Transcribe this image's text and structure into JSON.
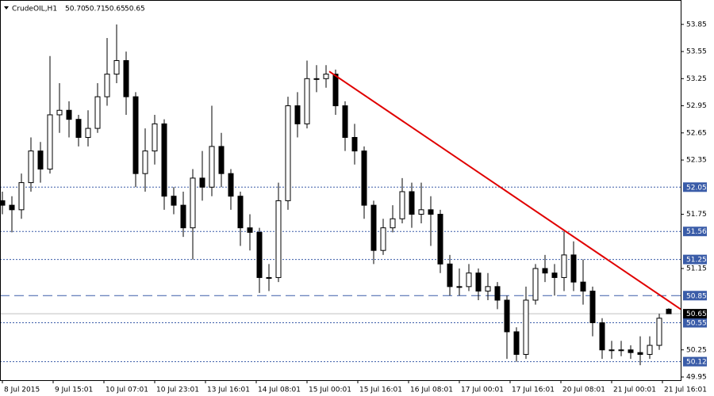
{
  "chart_data": {
    "type": "candlestick",
    "title": "CrudeOIL,H1",
    "header_ohlc": [
      "50.70",
      "50.71",
      "50.65",
      "50.65"
    ],
    "x": [
      0,
      3,
      6,
      9,
      12,
      15,
      18,
      21,
      24,
      27,
      30,
      33,
      36,
      39,
      42,
      45,
      48,
      51,
      54,
      57,
      60,
      63,
      66,
      69,
      72,
      75,
      78,
      81,
      84,
      87,
      90,
      93,
      96,
      99,
      102,
      105,
      108,
      111,
      114,
      117,
      120,
      123,
      126,
      129,
      132,
      135,
      138,
      141,
      144,
      147,
      150,
      153,
      156,
      159,
      162,
      165,
      168,
      171,
      174,
      177,
      180,
      183,
      186,
      189,
      192,
      195,
      198,
      201,
      204,
      207,
      210
    ],
    "open": [
      51.9,
      51.85,
      51.8,
      52.1,
      52.45,
      52.25,
      52.85,
      52.9,
      52.8,
      52.6,
      52.7,
      53.05,
      53.3,
      53.45,
      53.05,
      52.2,
      52.45,
      52.75,
      51.95,
      51.85,
      51.6,
      52.15,
      52.05,
      52.5,
      52.2,
      51.95,
      51.6,
      51.55,
      51.05,
      51.05,
      51.9,
      52.95,
      52.75,
      53.25,
      53.25,
      53.3,
      52.95,
      52.6,
      52.45,
      51.85,
      51.35,
      51.6,
      51.7,
      52.0,
      51.75,
      51.8,
      51.75,
      51.2,
      50.95,
      50.95,
      51.1,
      50.9,
      50.95,
      50.8,
      50.45,
      50.2,
      50.8,
      51.15,
      51.1,
      51.05,
      51.3,
      51.0,
      50.9,
      50.55,
      50.25,
      50.25,
      50.25,
      50.22,
      50.2,
      50.3,
      50.7
    ],
    "high": [
      52.0,
      51.95,
      52.2,
      52.6,
      52.55,
      53.5,
      53.2,
      53.0,
      52.85,
      52.9,
      53.2,
      53.7,
      53.85,
      53.55,
      53.1,
      52.7,
      52.85,
      52.8,
      52.05,
      52.0,
      52.25,
      52.45,
      52.95,
      52.65,
      52.25,
      52.0,
      51.75,
      51.6,
      51.2,
      52.1,
      53.05,
      53.1,
      53.45,
      53.4,
      53.4,
      53.35,
      53.0,
      52.75,
      52.5,
      51.9,
      51.7,
      51.85,
      52.15,
      52.1,
      52.1,
      51.95,
      51.8,
      51.3,
      51.15,
      51.2,
      51.15,
      51.1,
      51.0,
      50.85,
      50.5,
      50.95,
      51.2,
      51.3,
      51.2,
      51.56,
      51.45,
      51.25,
      50.95,
      50.6,
      50.35,
      50.35,
      50.3,
      50.4,
      50.4,
      50.65,
      50.71
    ],
    "low": [
      51.75,
      51.55,
      51.7,
      52.0,
      52.1,
      52.2,
      52.65,
      52.6,
      52.5,
      52.5,
      52.65,
      52.95,
      53.2,
      52.85,
      52.05,
      52.0,
      52.3,
      51.8,
      51.75,
      51.5,
      51.25,
      51.9,
      51.95,
      52.05,
      51.8,
      51.4,
      51.35,
      50.88,
      50.9,
      51.0,
      51.8,
      52.6,
      52.7,
      53.1,
      53.15,
      52.85,
      52.45,
      52.3,
      51.7,
      51.2,
      51.3,
      51.55,
      51.65,
      51.6,
      51.65,
      51.4,
      51.1,
      50.85,
      50.85,
      50.9,
      50.8,
      50.8,
      50.7,
      50.15,
      50.12,
      50.15,
      50.75,
      51.0,
      50.85,
      50.9,
      50.9,
      50.75,
      50.4,
      50.15,
      50.15,
      50.18,
      50.15,
      50.08,
      50.15,
      50.25,
      50.65
    ],
    "close": [
      51.85,
      51.8,
      52.1,
      52.45,
      52.25,
      52.85,
      52.9,
      52.8,
      52.6,
      52.7,
      53.05,
      53.3,
      53.45,
      53.05,
      52.2,
      52.45,
      52.75,
      51.95,
      51.85,
      51.6,
      52.15,
      52.05,
      52.5,
      52.2,
      51.95,
      51.6,
      51.55,
      51.05,
      51.05,
      51.9,
      52.95,
      52.75,
      53.25,
      53.25,
      53.3,
      52.95,
      52.6,
      52.45,
      51.85,
      51.35,
      51.6,
      51.7,
      52.0,
      51.75,
      51.8,
      51.75,
      51.2,
      50.95,
      50.95,
      51.1,
      50.9,
      50.95,
      50.8,
      50.45,
      50.2,
      50.8,
      51.15,
      51.1,
      51.05,
      51.3,
      51.0,
      50.9,
      50.55,
      50.25,
      50.25,
      50.25,
      50.22,
      50.2,
      50.3,
      50.6,
      50.65
    ],
    "xlim": [
      -0.75,
      213.75
    ],
    "xticks": [
      {
        "value": 0,
        "label": "8 Jul 2015"
      },
      {
        "value": 16,
        "label": "9 Jul 15:01"
      },
      {
        "value": 32,
        "label": "10 Jul 07:01"
      },
      {
        "value": 48,
        "label": "10 Jul 23:01"
      },
      {
        "value": 64,
        "label": "13 Jul 16:01"
      },
      {
        "value": 80,
        "label": "14 Jul 08:01"
      },
      {
        "value": 96,
        "label": "15 Jul 00:01"
      },
      {
        "value": 112,
        "label": "15 Jul 16:01"
      },
      {
        "value": 128,
        "label": "16 Jul 08:01"
      },
      {
        "value": 144,
        "label": "17 Jul 00:01"
      },
      {
        "value": 160,
        "label": "17 Jul 16:01"
      },
      {
        "value": 176,
        "label": "20 Jul 08:01"
      },
      {
        "value": 192,
        "label": "21 Jul 00:01"
      },
      {
        "value": 208,
        "label": "21 Jul 16:01"
      }
    ],
    "ylim": [
      49.915,
      54.12
    ],
    "yticks": [
      53.85,
      53.55,
      53.25,
      52.95,
      52.65,
      52.35,
      51.75,
      51.15,
      50.25,
      49.95
    ],
    "levels": [
      {
        "value": 52.05,
        "style": "dotted"
      },
      {
        "value": 51.56,
        "style": "dotted"
      },
      {
        "value": 51.25,
        "style": "dotted"
      },
      {
        "value": 50.85,
        "style": "dashed"
      },
      {
        "value": 50.55,
        "style": "dotted"
      },
      {
        "value": 50.12,
        "style": "dotted"
      }
    ],
    "level_color": "#3a5ca8",
    "current_price": 50.65,
    "trendline": {
      "from": [
        103,
        53.33
      ],
      "to": [
        213.75,
        50.7
      ],
      "color": "#e00000"
    }
  }
}
